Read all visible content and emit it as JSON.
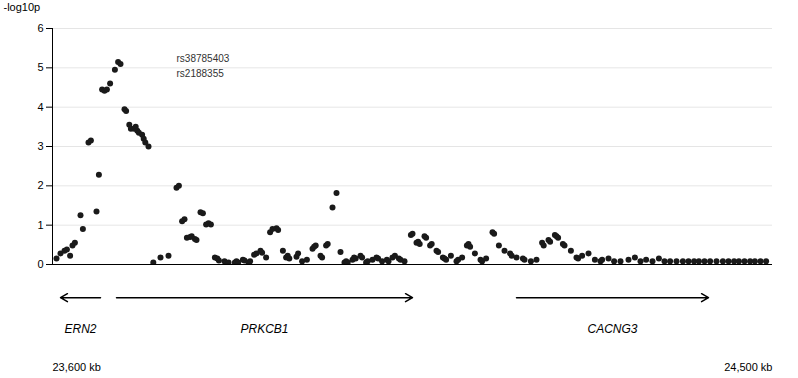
{
  "chart_data": {
    "type": "scatter",
    "ylabel": "-log10p",
    "xlim": [
      23600,
      24500
    ],
    "xticks": [
      {
        "value": 23600,
        "label": "23,600 kb"
      },
      {
        "value": 24500,
        "label": "24,500 kb"
      }
    ],
    "ylim": [
      0,
      6
    ],
    "yticks": [
      0,
      1,
      2,
      3,
      4,
      5,
      6
    ],
    "grid": true,
    "color": "#1a1a1a",
    "x": [
      23605,
      23610,
      23615,
      23618,
      23622,
      23625,
      23628,
      23635,
      23638,
      23645,
      23648,
      23655,
      23658,
      23662,
      23665,
      23668,
      23672,
      23678,
      23682,
      23685,
      23690,
      23692,
      23696,
      23698,
      23702,
      23704,
      23706,
      23708,
      23712,
      23714,
      23716,
      23720,
      23726,
      23735,
      23745,
      23755,
      23758,
      23762,
      23765,
      23768,
      23772,
      23774,
      23778,
      23780,
      23785,
      23788,
      23792,
      23795,
      23798,
      23803,
      23806,
      23808,
      23815,
      23820,
      23828,
      23830,
      23832,
      23838,
      23840,
      23845,
      23847,
      23852,
      23855,
      23860,
      23862,
      23867,
      23872,
      23875,
      23880,
      23882,
      23888,
      23892,
      23894,
      23896,
      23905,
      23907,
      23912,
      23918,
      23925,
      23927,
      23929,
      23935,
      23937,
      23942,
      23944,
      23950,
      23955,
      23960,
      23965,
      23967,
      23969,
      23975,
      23977,
      23979,
      23985,
      23987,
      23992,
      23994,
      24000,
      24005,
      24007,
      24012,
      24018,
      24020,
      24025,
      24028,
      24033,
      24035,
      24040,
      24048,
      24050,
      24055,
      24057,
      24059,
      24065,
      24067,
      24072,
      24074,
      24080,
      24082,
      24088,
      24090,
      24092,
      24098,
      24105,
      24107,
      24112,
      24118,
      24120,
      24122,
      24128,
      24135,
      24137,
      24142,
      24150,
      24152,
      24158,
      24165,
      24172,
      24174,
      24180,
      24188,
      24190,
      24198,
      24205,
      24212,
      24214,
      24220,
      24222,
      24228,
      24230,
      24232,
      24238,
      24240,
      24248,
      24255,
      24257,
      24262,
      24270,
      24278,
      24285,
      24287,
      24295,
      24302,
      24310,
      24320,
      24328,
      24335,
      24342,
      24350,
      24358,
      24365,
      24372,
      24380,
      24388,
      24395,
      24402,
      24408,
      24415,
      24422,
      24430,
      24438,
      24445,
      24452,
      24458,
      24465,
      24472,
      24478,
      24485,
      24492
    ],
    "values": [
      0.15,
      0.28,
      0.35,
      0.38,
      0.22,
      0.48,
      0.55,
      1.25,
      0.9,
      3.1,
      3.15,
      1.35,
      2.28,
      4.45,
      4.42,
      4.45,
      4.6,
      4.95,
      5.15,
      5.1,
      3.95,
      3.9,
      3.55,
      3.45,
      3.45,
      3.5,
      3.4,
      3.35,
      3.3,
      3.2,
      3.1,
      3.0,
      0.05,
      0.18,
      0.22,
      1.95,
      2.0,
      1.1,
      1.15,
      0.68,
      0.7,
      0.72,
      0.65,
      0.62,
      1.33,
      1.3,
      1.02,
      1.05,
      1.02,
      0.18,
      0.15,
      0.1,
      0.08,
      0.05,
      0.05,
      0.08,
      0.05,
      0.12,
      0.1,
      0.05,
      0.08,
      0.25,
      0.28,
      0.35,
      0.3,
      0.18,
      0.82,
      0.9,
      0.92,
      0.88,
      0.35,
      0.18,
      0.22,
      0.15,
      0.2,
      0.28,
      0.08,
      0.12,
      0.4,
      0.45,
      0.48,
      0.22,
      0.18,
      0.48,
      0.52,
      1.45,
      1.82,
      0.32,
      0.05,
      0.08,
      0.05,
      0.12,
      0.18,
      0.15,
      0.22,
      0.18,
      0.05,
      0.08,
      0.12,
      0.18,
      0.15,
      0.08,
      0.12,
      0.08,
      0.18,
      0.22,
      0.15,
      0.12,
      0.08,
      0.75,
      0.78,
      0.55,
      0.58,
      0.52,
      0.72,
      0.68,
      0.48,
      0.52,
      0.35,
      0.32,
      0.18,
      0.15,
      0.12,
      0.22,
      0.08,
      0.12,
      0.18,
      0.48,
      0.52,
      0.45,
      0.28,
      0.12,
      0.08,
      0.15,
      0.82,
      0.78,
      0.48,
      0.35,
      0.28,
      0.22,
      0.18,
      0.15,
      0.12,
      0.08,
      0.12,
      0.55,
      0.48,
      0.62,
      0.58,
      0.75,
      0.72,
      0.68,
      0.52,
      0.48,
      0.35,
      0.18,
      0.15,
      0.22,
      0.28,
      0.12,
      0.08,
      0.12,
      0.15,
      0.08,
      0.08,
      0.12,
      0.18,
      0.08,
      0.12,
      0.08,
      0.15,
      0.08,
      0.08,
      0.08,
      0.08,
      0.08,
      0.08,
      0.08,
      0.08,
      0.08,
      0.08,
      0.08,
      0.08,
      0.08,
      0.08,
      0.08,
      0.08,
      0.08,
      0.08,
      0.08
    ],
    "annotations": [
      {
        "text": "rs38785403",
        "x": 23755,
        "y": 5.15
      },
      {
        "text": "rs2188355",
        "x": 23755,
        "y": 4.95
      }
    ],
    "genes": [
      {
        "name": "ERN2",
        "x": [
          23610,
          23660
        ],
        "direction": "left"
      },
      {
        "name": "PRKCB1",
        "x": [
          23680,
          24050
        ],
        "direction": "right"
      },
      {
        "name": "CACNG3",
        "x": [
          24180,
          24420
        ],
        "direction": "right"
      }
    ]
  }
}
